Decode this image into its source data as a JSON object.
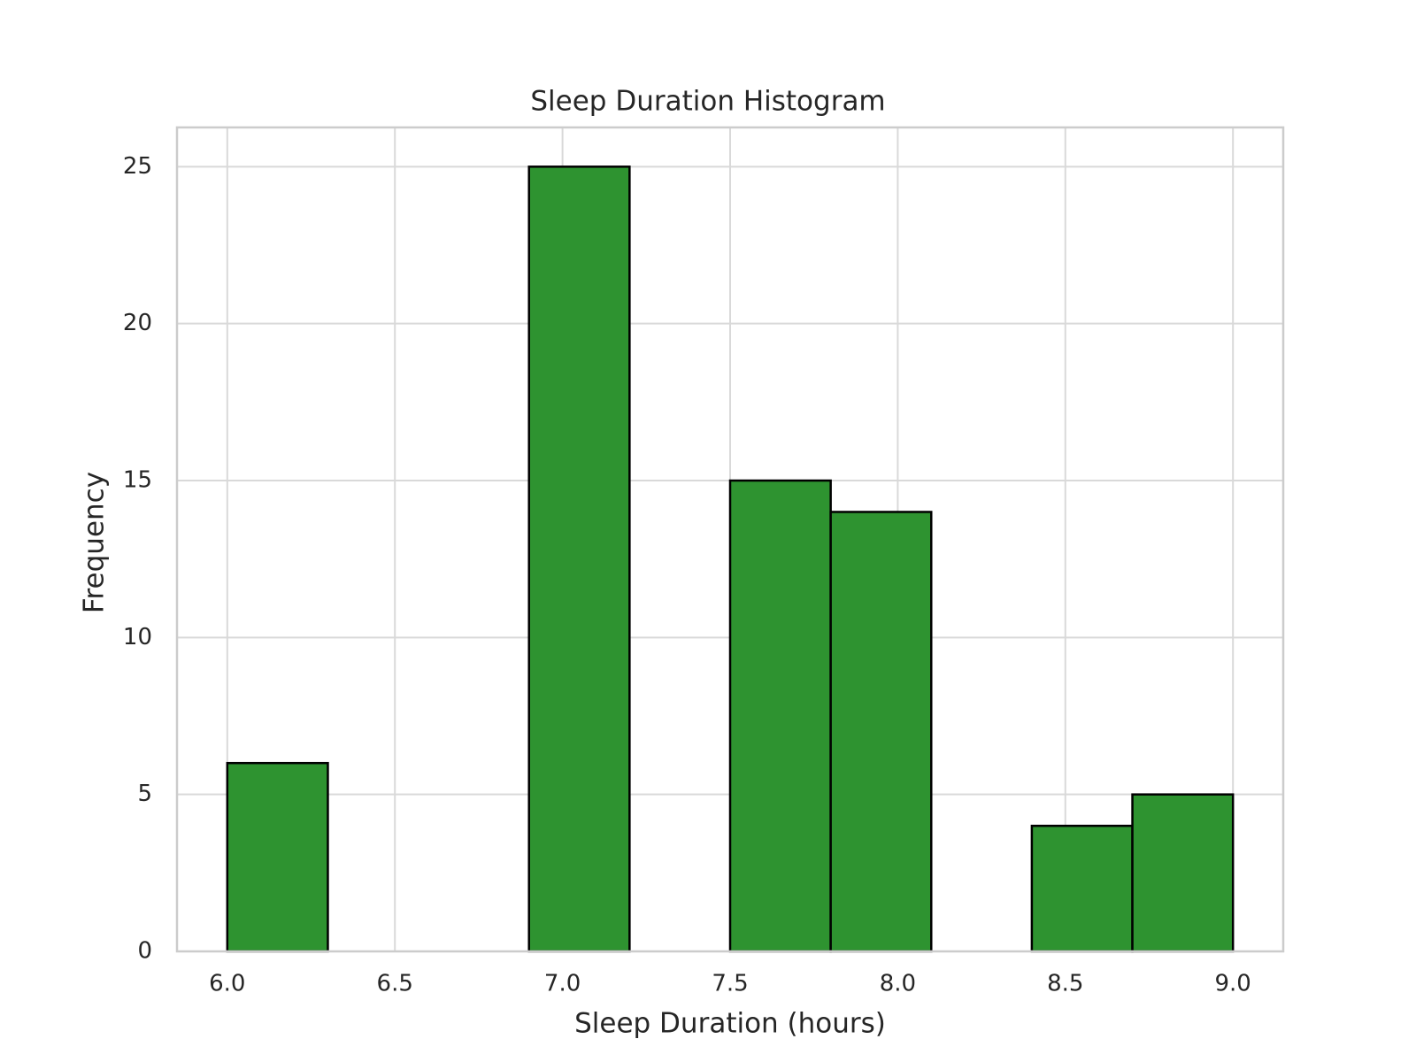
{
  "chart_data": {
    "type": "bar",
    "title": "Sleep Duration Histogram",
    "xlabel": "Sleep Duration (hours)",
    "ylabel": "Frequency",
    "xlim": [
      5.85,
      9.15
    ],
    "ylim": [
      0,
      26.25
    ],
    "xticks": [
      6.0,
      6.5,
      7.0,
      7.5,
      8.0,
      8.5,
      9.0
    ],
    "xtick_labels": [
      "6.0",
      "6.5",
      "7.0",
      "7.5",
      "8.0",
      "8.5",
      "9.0"
    ],
    "yticks": [
      0,
      5,
      10,
      15,
      20,
      25
    ],
    "ytick_labels": [
      "0",
      "5",
      "10",
      "15",
      "20",
      "25"
    ],
    "bin_edges": [
      6.0,
      6.3,
      6.6,
      6.9,
      7.2,
      7.5,
      7.8,
      8.1,
      8.4,
      8.7,
      9.0
    ],
    "counts": [
      6,
      0,
      0,
      25,
      0,
      15,
      14,
      0,
      4,
      5
    ],
    "grid": true,
    "bar_color": "#2e9330",
    "edge_color": "#000000"
  }
}
